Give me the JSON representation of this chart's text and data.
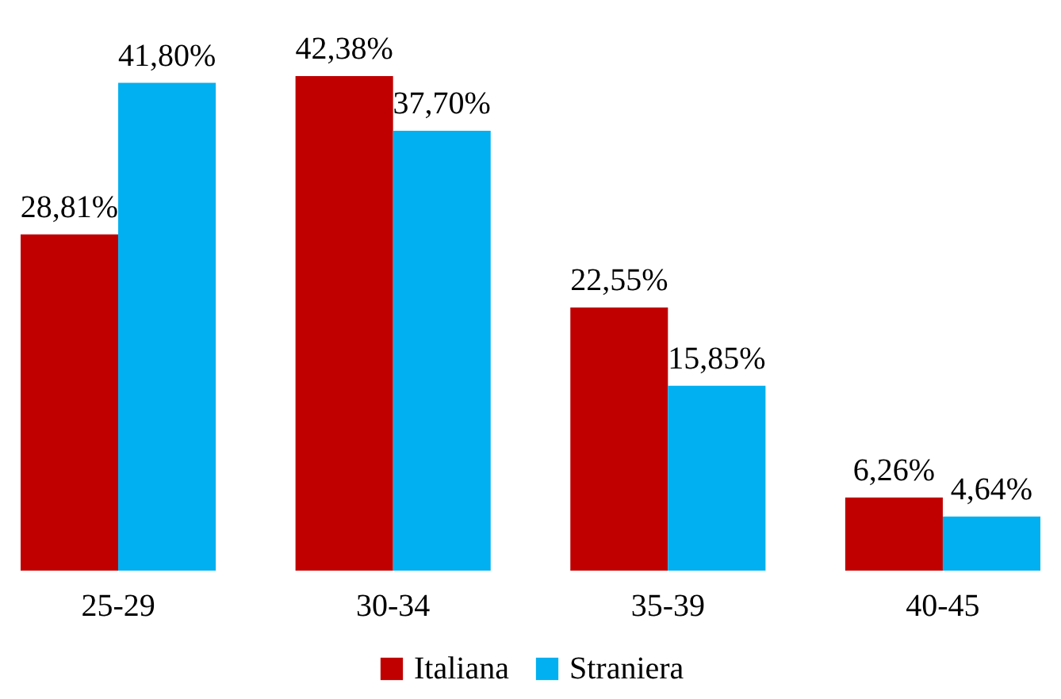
{
  "chart_data": {
    "type": "bar",
    "categories": [
      "25-29",
      "30-34",
      "35-39",
      "40-45"
    ],
    "series": [
      {
        "name": "Italiana",
        "color": "#c00000",
        "values": [
          28.81,
          42.38,
          22.55,
          6.26
        ],
        "value_labels": [
          "28,81%",
          "42,38%",
          "22,55%",
          "6,26%"
        ]
      },
      {
        "name": "Straniera",
        "color": "#00b0f0",
        "values": [
          41.8,
          37.7,
          15.85,
          4.64
        ],
        "value_labels": [
          "41,80%",
          "37,70%",
          "15,85%",
          "4,64%"
        ]
      }
    ],
    "legend": "bottom",
    "tick_labels": "x"
  }
}
